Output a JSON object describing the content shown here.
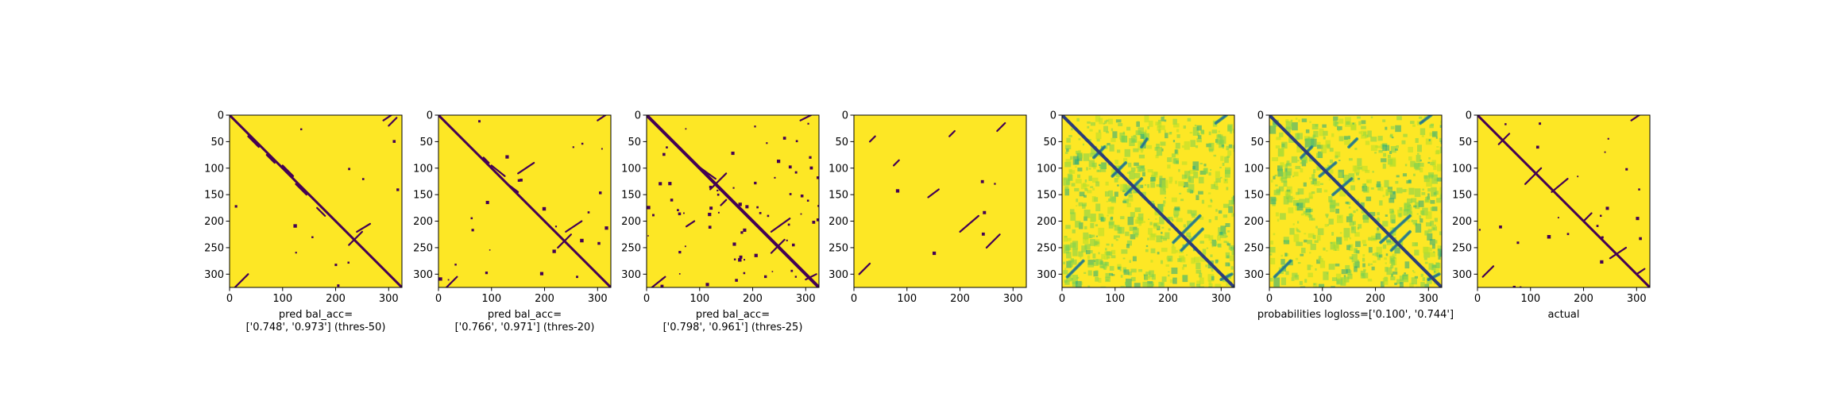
{
  "figure": {
    "background": "#ffffff",
    "colormap": "viridis",
    "colors": {
      "low": "#440154",
      "mid": "#21918c",
      "high": "#fde725"
    }
  },
  "chart_data": [
    {
      "type": "heatmap",
      "title": "",
      "xlabel": "pred bal_acc=\n['0.748', '0.973'] (thres-50)",
      "ylabel": "",
      "xlim": [
        0,
        325
      ],
      "ylim": [
        325,
        0
      ],
      "xticks": [
        0,
        100,
        200,
        300
      ],
      "yticks": [
        0,
        50,
        100,
        150,
        200,
        250,
        300
      ],
      "value_kind": "binary",
      "background_value": 1,
      "pattern": "main anti-diagonal band of 0-valued (dark) cells with short off-diagonal contact segments"
    },
    {
      "type": "heatmap",
      "title": "",
      "xlabel": "pred bal_acc=\n['0.766', '0.971'] (thres-20)",
      "ylabel": "",
      "xlim": [
        0,
        325
      ],
      "ylim": [
        325,
        0
      ],
      "xticks": [
        0,
        100,
        200,
        300
      ],
      "yticks": [
        0,
        50,
        100,
        150,
        200,
        250,
        300
      ],
      "value_kind": "binary",
      "background_value": 1,
      "pattern": "main diagonal band of 0-valued (dark) cells with off-diagonal contact segments"
    },
    {
      "type": "heatmap",
      "title": "",
      "xlabel": "pred bal_acc=\n['0.798', '0.961'] (thres-25)",
      "ylabel": "",
      "xlim": [
        0,
        325
      ],
      "ylim": [
        325,
        0
      ],
      "xticks": [
        0,
        100,
        200,
        300
      ],
      "yticks": [
        0,
        50,
        100,
        150,
        200,
        250,
        300
      ],
      "value_kind": "binary",
      "background_value": 1,
      "pattern": "thicker main diagonal with many scattered 0-valued (dark) specks and contact segments"
    },
    {
      "type": "heatmap",
      "title": "",
      "xlabel": "",
      "ylabel": "",
      "xlim": [
        0,
        325
      ],
      "ylim": [
        325,
        0
      ],
      "xticks": [
        0,
        100,
        200,
        300
      ],
      "yticks": [
        0,
        50,
        100,
        150,
        200,
        250,
        300
      ],
      "value_kind": "binary",
      "background_value": 1,
      "pattern": "mostly 1-valued with a few thin dark segments parallel to the diagonal"
    },
    {
      "type": "heatmap",
      "title": "",
      "xlabel": "",
      "ylabel": "",
      "xlim": [
        0,
        325
      ],
      "ylim": [
        325,
        0
      ],
      "xticks": [
        0,
        100,
        200,
        300
      ],
      "yticks": [
        0,
        50,
        100,
        150,
        200,
        250,
        300
      ],
      "value_kind": "continuous",
      "background_value": 1,
      "pattern": "continuous map: strong dark diagonal, dark-teal contact bands, green speckled texture over yellow"
    },
    {
      "type": "heatmap",
      "title": "",
      "xlabel": "probabilities logloss=['0.100', '0.744']",
      "ylabel": "",
      "xlim": [
        0,
        325
      ],
      "ylim": [
        325,
        0
      ],
      "xticks": [
        0,
        100,
        200,
        300
      ],
      "yticks": [
        0,
        50,
        100,
        150,
        200,
        250,
        300
      ],
      "value_kind": "continuous",
      "background_value": 1,
      "pattern": "continuous probabilities: dark diagonal, dark-teal contact bands, green speckled texture over yellow"
    },
    {
      "type": "heatmap",
      "title": "",
      "xlabel": "actual",
      "ylabel": "",
      "xlim": [
        0,
        325
      ],
      "ylim": [
        325,
        0
      ],
      "xticks": [
        0,
        100,
        200,
        300
      ],
      "yticks": [
        0,
        50,
        100,
        150,
        200,
        250,
        300
      ],
      "value_kind": "binary",
      "background_value": 1,
      "pattern": "true contact map: dark diagonal with scattered contact clusters near the diagonal"
    }
  ]
}
